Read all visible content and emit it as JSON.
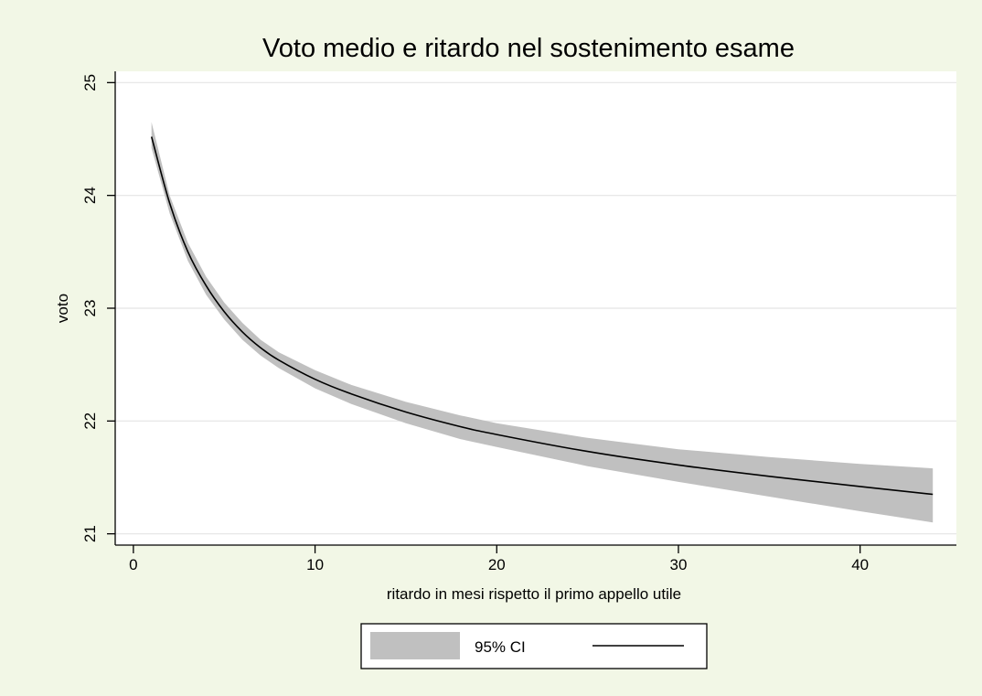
{
  "chart_data": {
    "type": "line",
    "title": "Voto medio e ritardo nel sostenimento esame",
    "xlabel": "ritardo in mesi rispetto il primo appello utile",
    "ylabel": "voto",
    "xlim": [
      -1,
      45.3
    ],
    "ylim": [
      20.9,
      25.1
    ],
    "xticks": [
      0,
      10,
      20,
      30,
      40
    ],
    "yticks": [
      21,
      22,
      23,
      24,
      25
    ],
    "grid": "horizontal",
    "legend_position": "bottom-center",
    "series": [
      {
        "legend_label": "95% CI",
        "kind": "band",
        "color": "#c0c0c0",
        "x": [
          1,
          2,
          3,
          4,
          5,
          6,
          7,
          8,
          10,
          12,
          15,
          18,
          20,
          25,
          30,
          35,
          40,
          44
        ],
        "lower": [
          24.42,
          23.84,
          23.42,
          23.12,
          22.9,
          22.72,
          22.58,
          22.47,
          22.29,
          22.15,
          21.98,
          21.84,
          21.77,
          21.6,
          21.46,
          21.33,
          21.2,
          21.1
        ],
        "upper": [
          24.65,
          24.0,
          23.58,
          23.28,
          23.05,
          22.87,
          22.72,
          22.61,
          22.45,
          22.32,
          22.17,
          22.05,
          21.98,
          21.85,
          21.75,
          21.68,
          21.62,
          21.58
        ]
      },
      {
        "legend_label": "",
        "kind": "line",
        "color": "#000000",
        "x": [
          1,
          2,
          3,
          4,
          5,
          6,
          7,
          8,
          10,
          12,
          15,
          18,
          20,
          25,
          30,
          35,
          40,
          44
        ],
        "y": [
          24.52,
          23.93,
          23.5,
          23.2,
          22.97,
          22.79,
          22.65,
          22.54,
          22.37,
          22.24,
          22.08,
          21.95,
          21.88,
          21.73,
          21.61,
          21.51,
          21.42,
          21.35
        ]
      }
    ]
  }
}
